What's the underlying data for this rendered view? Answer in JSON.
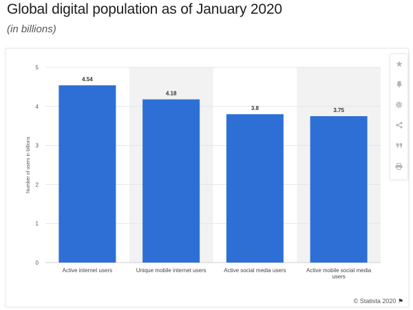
{
  "header": {
    "title": "Global digital population as of January 2020",
    "subtitle": "(in billions)"
  },
  "toolbar": {
    "icons": [
      "star-icon",
      "bell-icon",
      "gear-icon",
      "share-icon",
      "quote-icon",
      "print-icon"
    ]
  },
  "credit": {
    "text": "© Statista 2020"
  },
  "colors": {
    "bar": "#2e6fd6",
    "band": "#f2f2f2",
    "grid": "#e5e5e5"
  },
  "chart_data": {
    "type": "bar",
    "title": "Global digital population as of January 2020",
    "subtitle": "(in billions)",
    "ylabel": "Number of users in billions",
    "xlabel": "",
    "categories": [
      "Active internet users",
      "Unique mobile internet users",
      "Active social media users",
      "Active mobile social media users"
    ],
    "values": [
      4.54,
      4.18,
      3.8,
      3.75
    ],
    "value_labels": [
      "4.54",
      "4.18",
      "3.8",
      "3.75"
    ],
    "ylim": [
      0,
      5
    ],
    "yticks": [
      0,
      1,
      2,
      3,
      4,
      5
    ],
    "grid": true
  }
}
